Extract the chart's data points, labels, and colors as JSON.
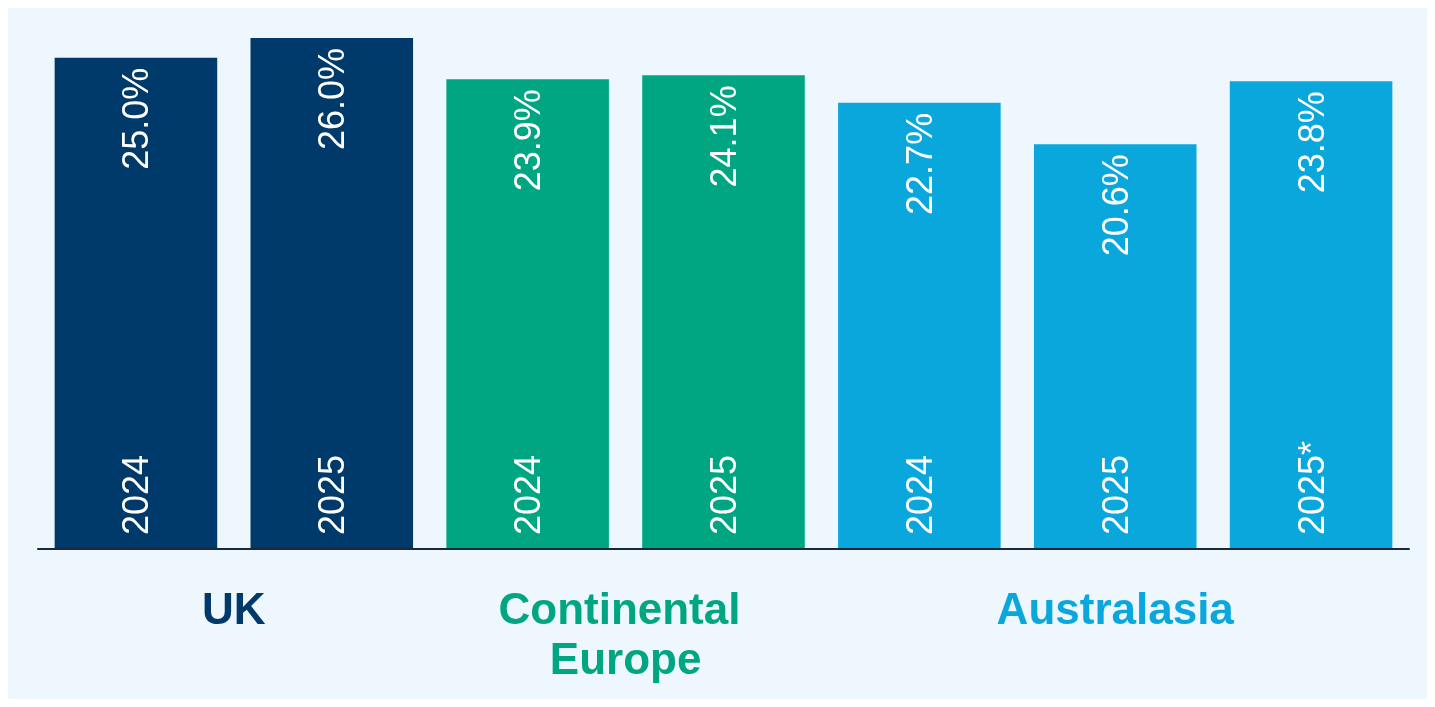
{
  "chart_data": {
    "type": "bar",
    "categories": [
      "2024",
      "2025",
      "2024",
      "2025",
      "2024",
      "2025",
      "2025*"
    ],
    "series": [
      {
        "name": "UK",
        "color": "#003a6b",
        "values": [
          25.0,
          26.0,
          null,
          null,
          null,
          null,
          null
        ],
        "value_labels": [
          "25.0%",
          "26.0%",
          null,
          null,
          null,
          null,
          null
        ]
      },
      {
        "name": "Continental Europe",
        "color": "#00a582",
        "values": [
          null,
          null,
          23.9,
          24.1,
          null,
          null,
          null
        ],
        "value_labels": [
          null,
          null,
          "23.9%",
          "24.1%",
          null,
          null,
          null
        ]
      },
      {
        "name": "Australasia",
        "color": "#0aa7dd",
        "values": [
          null,
          null,
          null,
          null,
          22.7,
          20.6,
          23.8
        ],
        "value_labels": [
          null,
          null,
          null,
          null,
          "22.7%",
          "20.6%",
          "23.8%"
        ]
      }
    ],
    "grid": false,
    "legend": false
  }
}
